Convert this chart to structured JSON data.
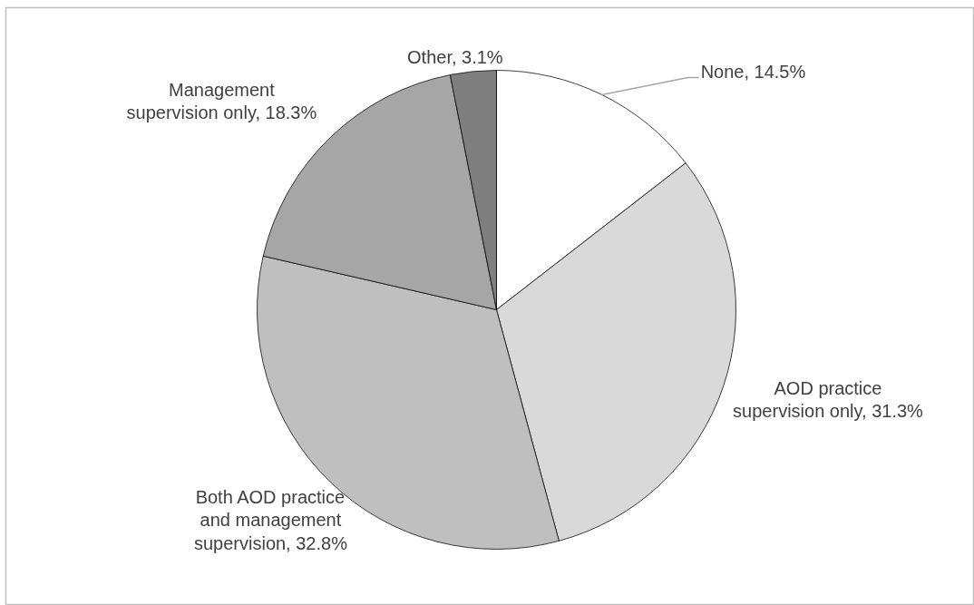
{
  "chart_data": {
    "type": "pie",
    "categories": [
      "None",
      "AOD practice supervision only",
      "Both AOD practice and management supervision",
      "Management supervision only",
      "Other"
    ],
    "values": [
      14.5,
      31.3,
      32.8,
      18.3,
      3.1
    ],
    "colors": [
      "#ffffff",
      "#d9d9d9",
      "#bfbfbf",
      "#a6a6a6",
      "#7f7f7f"
    ],
    "value_labels": [
      "14.5%",
      "31.3%",
      "32.8%",
      "18.3%",
      "3.1%"
    ]
  }
}
